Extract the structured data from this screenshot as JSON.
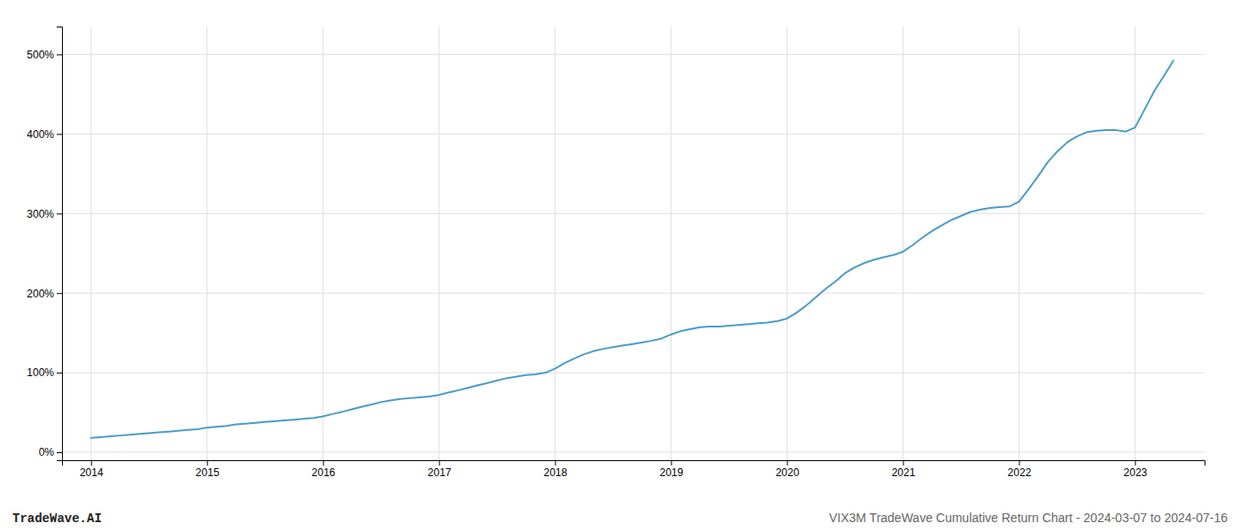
{
  "chart_data": {
    "type": "line",
    "annotations": [
      "TradeWave.AI",
      "VIX3M TradeWave Cumulative Return Chart - 2024-03-07 to 2024-07-16"
    ],
    "x": [
      2014.0,
      2014.08,
      2014.17,
      2014.25,
      2014.33,
      2014.42,
      2014.5,
      2014.58,
      2014.67,
      2014.75,
      2014.83,
      2014.92,
      2015.0,
      2015.08,
      2015.17,
      2015.25,
      2015.33,
      2015.42,
      2015.5,
      2015.58,
      2015.67,
      2015.75,
      2015.83,
      2015.92,
      2016.0,
      2016.08,
      2016.17,
      2016.25,
      2016.33,
      2016.42,
      2016.5,
      2016.58,
      2016.67,
      2016.75,
      2016.83,
      2016.92,
      2017.0,
      2017.08,
      2017.17,
      2017.25,
      2017.33,
      2017.42,
      2017.5,
      2017.58,
      2017.67,
      2017.75,
      2017.83,
      2017.92,
      2018.0,
      2018.08,
      2018.17,
      2018.25,
      2018.33,
      2018.42,
      2018.5,
      2018.58,
      2018.67,
      2018.75,
      2018.83,
      2018.92,
      2019.0,
      2019.08,
      2019.17,
      2019.25,
      2019.33,
      2019.42,
      2019.5,
      2019.58,
      2019.67,
      2019.75,
      2019.83,
      2019.92,
      2020.0,
      2020.08,
      2020.17,
      2020.25,
      2020.33,
      2020.42,
      2020.5,
      2020.58,
      2020.67,
      2020.75,
      2020.83,
      2020.92,
      2021.0,
      2021.08,
      2021.17,
      2021.25,
      2021.33,
      2021.42,
      2021.5,
      2021.58,
      2021.67,
      2021.75,
      2021.83,
      2021.92,
      2022.0,
      2022.08,
      2022.17,
      2022.25,
      2022.33,
      2022.42,
      2022.5,
      2022.58,
      2022.67,
      2022.75,
      2022.83,
      2022.92,
      2023.0,
      2023.08,
      2023.17,
      2023.25,
      2023.33
    ],
    "values": [
      18,
      19,
      20,
      21,
      22,
      23,
      24,
      25,
      26,
      27,
      28,
      29,
      31,
      32,
      33,
      35,
      36,
      37,
      38,
      39,
      40,
      41,
      42,
      43,
      45,
      48,
      51,
      54,
      57,
      60,
      63,
      65,
      67,
      68,
      69,
      70,
      72,
      75,
      78,
      81,
      84,
      87,
      90,
      93,
      95,
      97,
      98,
      100,
      105,
      112,
      118,
      123,
      127,
      130,
      132,
      134,
      136,
      138,
      140,
      143,
      148,
      152,
      155,
      157,
      158,
      158,
      159,
      160,
      161,
      162,
      163,
      165,
      168,
      175,
      185,
      195,
      205,
      215,
      225,
      232,
      238,
      242,
      245,
      248,
      252,
      260,
      270,
      278,
      285,
      292,
      297,
      302,
      305,
      307,
      308,
      309,
      315,
      330,
      348,
      365,
      378,
      390,
      397,
      402,
      404,
      405,
      405,
      403,
      408,
      430,
      455,
      473,
      492
    ],
    "color": "#4a9cc7",
    "xlim": [
      2013.75,
      2023.6
    ],
    "xticks": [
      2014,
      2015,
      2016,
      2017,
      2018,
      2019,
      2020,
      2021,
      2022,
      2023
    ],
    "ylim": [
      -10,
      535
    ],
    "yticks": [
      {
        "value": 0,
        "label": "0%"
      },
      {
        "value": 100,
        "label": "100%"
      },
      {
        "value": 200,
        "label": "200%"
      },
      {
        "value": 300,
        "label": "300%"
      },
      {
        "value": 400,
        "label": "400%"
      },
      {
        "value": 500,
        "label": "500%"
      }
    ],
    "grid": true
  }
}
